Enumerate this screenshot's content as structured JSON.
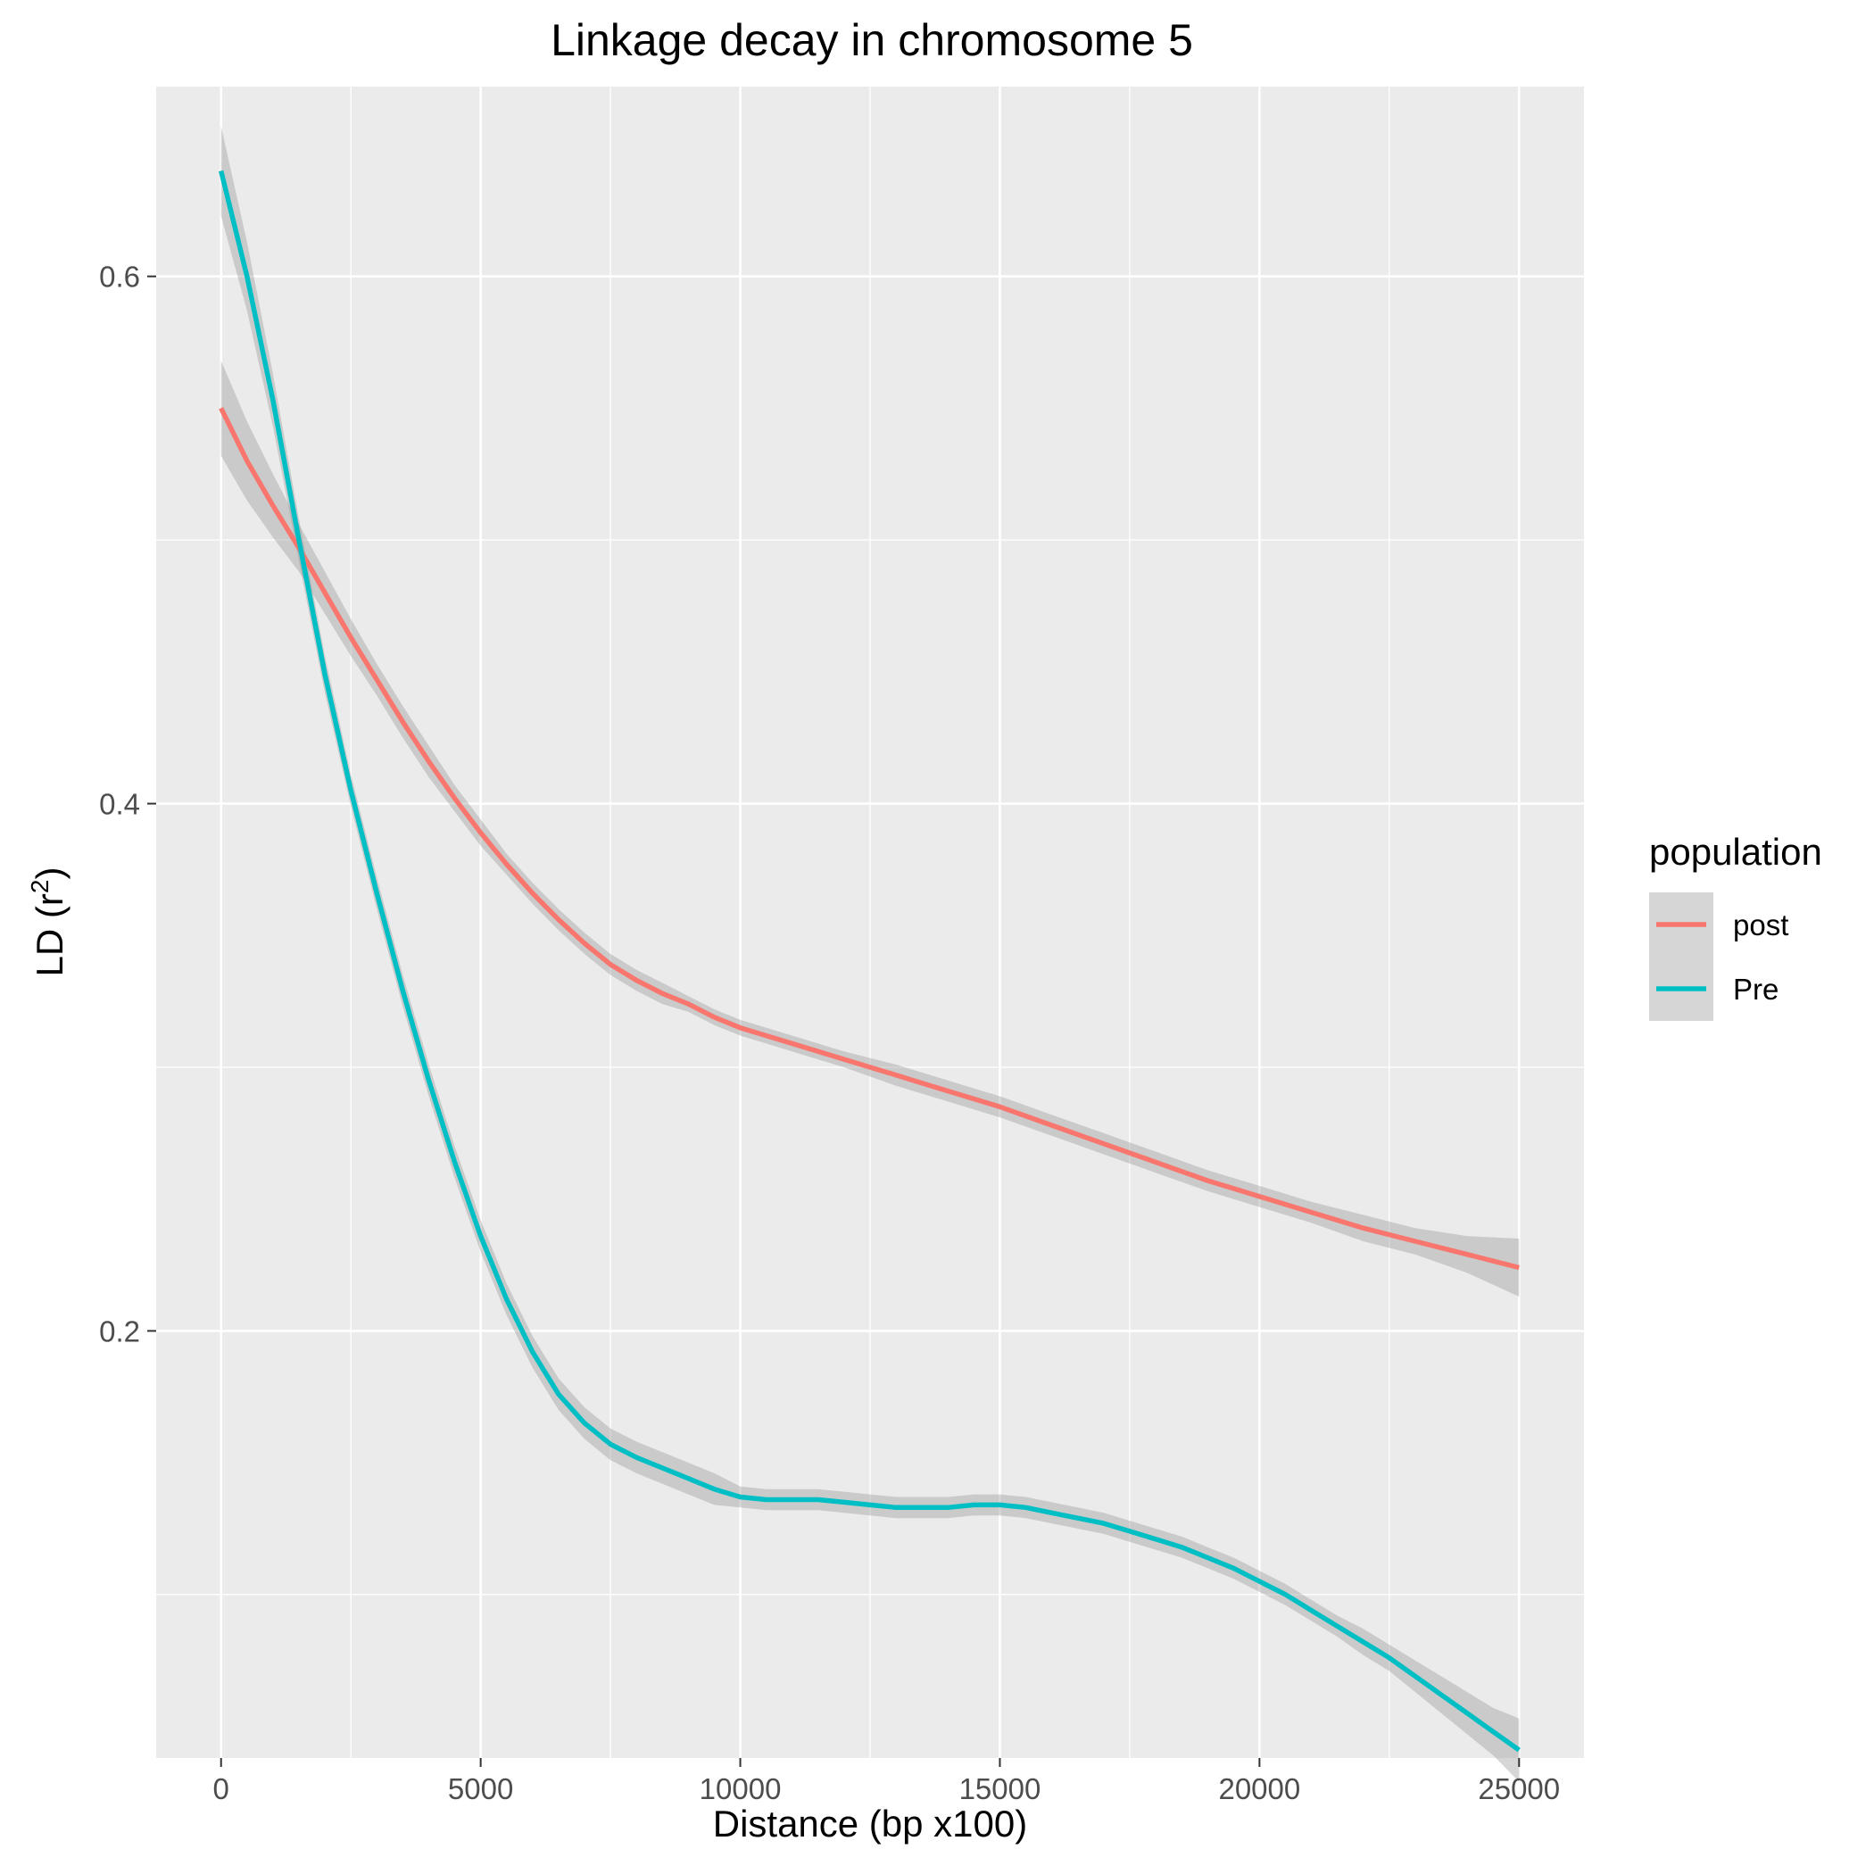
{
  "chart_data": {
    "type": "line",
    "title": "Linkage decay in chromosome  5",
    "xlabel": "Distance (bp x100)",
    "ylabel_main": "LD (r",
    "ylabel_sup": "2",
    "ylabel_close": ")",
    "xlim": [
      -1250,
      26250
    ],
    "ylim": [
      0.038,
      0.672
    ],
    "x_ticks": [
      0,
      5000,
      10000,
      15000,
      20000,
      25000
    ],
    "x_tick_labels": [
      "0",
      "5000",
      "10000",
      "15000",
      "20000",
      "25000"
    ],
    "y_ticks": [
      0.2,
      0.4,
      0.6
    ],
    "y_tick_labels": [
      "0.2",
      "0.4",
      "0.6"
    ],
    "grid": true,
    "legend_title": "population",
    "legend_position": "right",
    "series": [
      {
        "name": "post",
        "color": "#F8766D",
        "x": [
          0,
          500,
          1000,
          1500,
          2000,
          2500,
          3000,
          3500,
          4000,
          4500,
          5000,
          5500,
          6000,
          6500,
          7000,
          7500,
          8000,
          8500,
          9000,
          9500,
          10000,
          11000,
          12000,
          13000,
          14000,
          15000,
          16000,
          17000,
          18000,
          19000,
          20000,
          21000,
          22000,
          23000,
          24000,
          25000
        ],
        "y": [
          0.55,
          0.53,
          0.513,
          0.497,
          0.48,
          0.463,
          0.447,
          0.431,
          0.416,
          0.402,
          0.389,
          0.377,
          0.366,
          0.356,
          0.347,
          0.339,
          0.333,
          0.328,
          0.324,
          0.319,
          0.315,
          0.309,
          0.303,
          0.297,
          0.291,
          0.285,
          0.278,
          0.271,
          0.264,
          0.257,
          0.251,
          0.245,
          0.239,
          0.234,
          0.229,
          0.224
        ],
        "ci_upper": [
          0.568,
          0.545,
          0.525,
          0.506,
          0.488,
          0.47,
          0.453,
          0.437,
          0.422,
          0.407,
          0.394,
          0.381,
          0.37,
          0.36,
          0.351,
          0.343,
          0.337,
          0.332,
          0.327,
          0.322,
          0.318,
          0.312,
          0.306,
          0.301,
          0.295,
          0.289,
          0.282,
          0.275,
          0.268,
          0.261,
          0.255,
          0.249,
          0.244,
          0.239,
          0.236,
          0.235
        ],
        "ci_lower": [
          0.532,
          0.515,
          0.501,
          0.488,
          0.472,
          0.456,
          0.441,
          0.425,
          0.41,
          0.397,
          0.384,
          0.373,
          0.362,
          0.352,
          0.343,
          0.335,
          0.329,
          0.324,
          0.321,
          0.316,
          0.312,
          0.306,
          0.3,
          0.293,
          0.287,
          0.281,
          0.274,
          0.267,
          0.26,
          0.253,
          0.247,
          0.241,
          0.234,
          0.229,
          0.222,
          0.213
        ]
      },
      {
        "name": "Pre",
        "color": "#00BFC4",
        "x": [
          0,
          500,
          1000,
          1500,
          2000,
          2500,
          3000,
          3500,
          4000,
          4500,
          5000,
          5500,
          6000,
          6500,
          7000,
          7500,
          8000,
          8500,
          9000,
          9500,
          10000,
          10500,
          11000,
          11500,
          12000,
          12500,
          13000,
          13500,
          14000,
          14500,
          15000,
          15500,
          16000,
          16500,
          17000,
          17500,
          18000,
          18500,
          19000,
          19500,
          20000,
          20500,
          21000,
          21500,
          22000,
          22500,
          23000,
          23500,
          24000,
          24500,
          25000
        ],
        "y": [
          0.64,
          0.6,
          0.553,
          0.5,
          0.449,
          0.405,
          0.366,
          0.329,
          0.295,
          0.264,
          0.236,
          0.212,
          0.192,
          0.176,
          0.165,
          0.157,
          0.152,
          0.148,
          0.144,
          0.14,
          0.137,
          0.136,
          0.136,
          0.136,
          0.135,
          0.134,
          0.133,
          0.133,
          0.133,
          0.134,
          0.134,
          0.133,
          0.131,
          0.129,
          0.127,
          0.124,
          0.121,
          0.118,
          0.114,
          0.11,
          0.105,
          0.1,
          0.094,
          0.088,
          0.082,
          0.076,
          0.069,
          0.062,
          0.055,
          0.048,
          0.041
        ],
        "ci_upper": [
          0.657,
          0.613,
          0.563,
          0.508,
          0.456,
          0.411,
          0.372,
          0.335,
          0.301,
          0.27,
          0.242,
          0.218,
          0.198,
          0.182,
          0.171,
          0.163,
          0.158,
          0.154,
          0.15,
          0.146,
          0.141,
          0.14,
          0.14,
          0.14,
          0.139,
          0.138,
          0.137,
          0.137,
          0.137,
          0.138,
          0.138,
          0.137,
          0.135,
          0.133,
          0.131,
          0.128,
          0.125,
          0.122,
          0.118,
          0.114,
          0.109,
          0.104,
          0.098,
          0.092,
          0.087,
          0.081,
          0.075,
          0.069,
          0.063,
          0.057,
          0.053
        ],
        "ci_lower": [
          0.623,
          0.587,
          0.543,
          0.492,
          0.442,
          0.399,
          0.36,
          0.323,
          0.289,
          0.258,
          0.23,
          0.206,
          0.186,
          0.17,
          0.159,
          0.151,
          0.146,
          0.142,
          0.138,
          0.134,
          0.133,
          0.132,
          0.132,
          0.132,
          0.131,
          0.13,
          0.129,
          0.129,
          0.129,
          0.13,
          0.13,
          0.129,
          0.127,
          0.125,
          0.123,
          0.12,
          0.117,
          0.114,
          0.11,
          0.106,
          0.101,
          0.096,
          0.09,
          0.084,
          0.077,
          0.071,
          0.063,
          0.055,
          0.047,
          0.039,
          0.029
        ]
      }
    ]
  },
  "colors": {
    "panel_background": "#EBEBEB",
    "gridline": "#FFFFFF",
    "ribbon": "#999999"
  }
}
